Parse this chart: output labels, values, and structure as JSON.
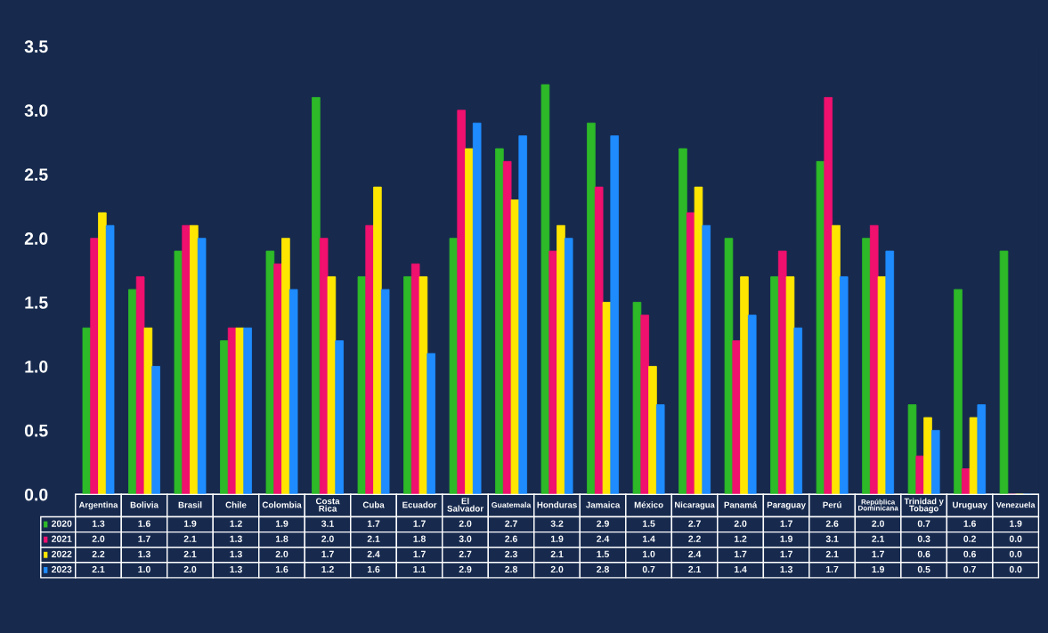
{
  "chart_data": {
    "type": "bar",
    "categories": [
      "Argentina",
      "Bolivia",
      "Brasil",
      "Chile",
      "Colombia",
      "Costa Rica",
      "Cuba",
      "Ecuador",
      "El Salvador",
      "Guatemala",
      "Honduras",
      "Jamaica",
      "México",
      "Nicaragua",
      "Panamá",
      "Paraguay",
      "Perú",
      "República Dominicana",
      "Trinidad y Tobago",
      "Uruguay",
      "Venezuela"
    ],
    "series": [
      {
        "name": "2020",
        "color": "#2db928",
        "values": [
          1.3,
          1.6,
          1.9,
          1.2,
          1.9,
          3.1,
          1.7,
          1.7,
          2.0,
          2.7,
          3.2,
          2.9,
          1.5,
          2.7,
          2.0,
          1.7,
          2.6,
          2.0,
          0.7,
          1.6,
          1.9
        ],
        "value_labels": [
          "1.3",
          "1.6",
          "1.9",
          "1.2",
          "1.9",
          "3.1",
          "1.7",
          "1.7",
          "2.0",
          "2.7",
          "3.2",
          "2.9",
          "1.5",
          "2.7",
          "2.0",
          "1.7",
          "2.6",
          "2.0",
          "0.7",
          "1.6",
          "1.9"
        ]
      },
      {
        "name": "2021",
        "color": "#f0106e",
        "values": [
          2.0,
          1.7,
          2.1,
          1.3,
          1.8,
          2.0,
          2.1,
          1.8,
          3.0,
          2.6,
          1.9,
          2.4,
          1.4,
          2.2,
          1.2,
          1.9,
          3.1,
          2.1,
          0.3,
          0.2,
          0.0
        ],
        "value_labels": [
          "2.0",
          "1.7",
          "2.1",
          "1.3",
          "1.8",
          "2.0",
          "2.1",
          "1.8",
          "3.0",
          "2.6",
          "1.9",
          "2.4",
          "1.4",
          "2.2",
          "1.2",
          "1.9",
          "3.1",
          "2.1",
          "0.3",
          "0.2",
          "0.0"
        ]
      },
      {
        "name": "2022",
        "color": "#ffe600",
        "values": [
          2.2,
          1.3,
          2.1,
          1.3,
          2.0,
          1.7,
          2.4,
          1.7,
          2.7,
          2.3,
          2.1,
          1.5,
          1.0,
          2.4,
          1.7,
          1.7,
          2.1,
          1.7,
          0.6,
          0.6,
          0.0
        ],
        "value_labels": [
          "2.2",
          "1.3",
          "2.1",
          "1.3",
          "2.0",
          "1.7",
          "2.4",
          "1.7",
          "2.7",
          "2.3",
          "2.1",
          "1.5",
          "1.0",
          "2.4",
          "1.7",
          "1.7",
          "2.1",
          "1.7",
          "0.6",
          "0.6",
          "0.0"
        ]
      },
      {
        "name": "2023",
        "color": "#1e8cff",
        "values": [
          2.1,
          1.0,
          2.0,
          1.3,
          1.6,
          1.2,
          1.6,
          1.1,
          2.9,
          2.8,
          2.0,
          2.8,
          0.7,
          2.1,
          1.4,
          1.3,
          1.7,
          1.9,
          0.5,
          0.7,
          0.0
        ],
        "value_labels": [
          "2.1",
          "1.0",
          "2.0",
          "1.3",
          "1.6",
          "1.2",
          "1.6",
          "1.1",
          "2.9",
          "2.8",
          "2.0",
          "2.8",
          "0.7",
          "2.1",
          "1.4",
          "1.3",
          "1.7",
          "1.9",
          "0.5",
          "0.7",
          "0.0"
        ]
      }
    ],
    "ylim": [
      0,
      3.5
    ],
    "yticks": [
      {
        "value": 0,
        "label": "0.0"
      },
      {
        "value": 0.5,
        "label": "0.5"
      },
      {
        "value": 1,
        "label": "1.0"
      },
      {
        "value": 1.5,
        "label": "1.5"
      },
      {
        "value": 2,
        "label": "2.0"
      },
      {
        "value": 2.5,
        "label": "2.5"
      },
      {
        "value": 3,
        "label": "3.0"
      },
      {
        "value": 3.5,
        "label": "3.5"
      }
    ],
    "grid": false,
    "legend": "bottom left"
  }
}
